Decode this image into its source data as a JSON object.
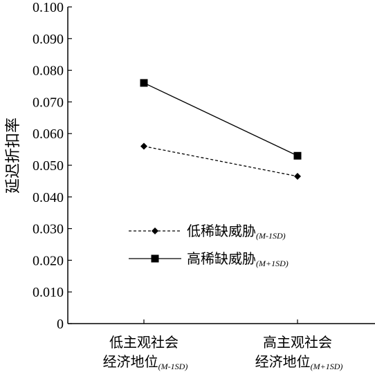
{
  "chart_data": {
    "type": "line",
    "ylabel": "延迟折扣率",
    "ylim": [
      0,
      0.1
    ],
    "yticks": [
      "0",
      "0.010",
      "0.020",
      "0.030",
      "0.040",
      "0.050",
      "0.060",
      "0.070",
      "0.080",
      "0.090",
      "0.100"
    ],
    "categories": [
      {
        "line1": "低主观社会",
        "line2": "经济地位",
        "sub": "(M-1SD)"
      },
      {
        "line1": "高主观社会",
        "line2": "经济地位",
        "sub": "(M+1SD)"
      }
    ],
    "grid": false,
    "legend_position": "center",
    "series": [
      {
        "name": "低稀缺威胁",
        "sub": "(M-1SD)",
        "values": [
          0.056,
          0.0465
        ],
        "marker": "diamond",
        "line_style": "dashed",
        "color": "#000000"
      },
      {
        "name": "高稀缺威胁",
        "sub": "(M+1SD)",
        "values": [
          0.076,
          0.053
        ],
        "marker": "square",
        "line_style": "solid",
        "color": "#000000"
      }
    ]
  }
}
